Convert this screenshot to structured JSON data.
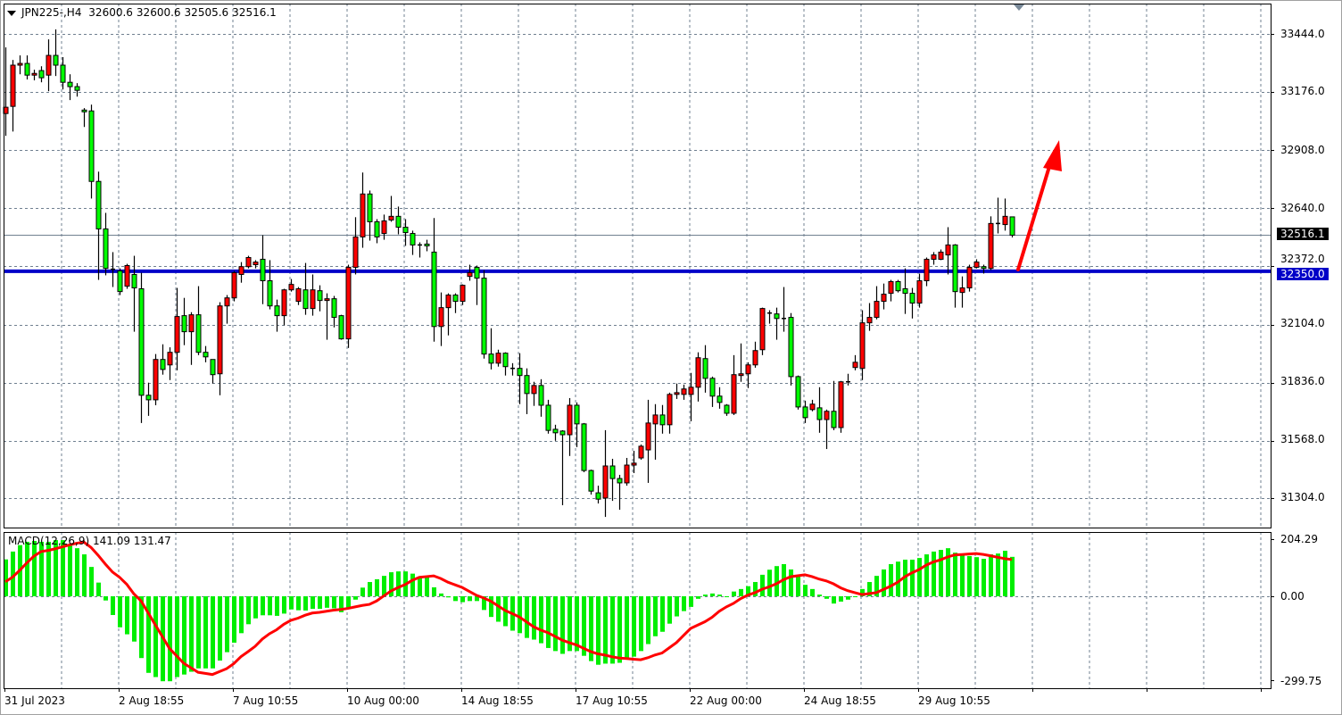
{
  "header": {
    "symbol": "JPN225-,H4",
    "open": "32600.6",
    "high": "32600.6",
    "low": "32505.6",
    "close": "32516.1"
  },
  "price_axis": {
    "ticks": [
      "33444.0",
      "33176.0",
      "32908.0",
      "32640.0",
      "32372.0",
      "32104.0",
      "31836.0",
      "31568.0",
      "31304.0"
    ],
    "current_price_label": "32516.1",
    "level_label": "32350.0"
  },
  "macd": {
    "label": "MACD(12,26,9)",
    "main_value": "141.09",
    "signal_value": "131.47",
    "ticks": [
      "204.29",
      "0.00",
      "-299.75"
    ]
  },
  "time_axis": {
    "ticks": [
      "31 Jul 2023",
      "2 Aug 18:55",
      "7 Aug 10:55",
      "10 Aug 00:00",
      "14 Aug 18:55",
      "17 Aug 10:55",
      "22 Aug 00:00",
      "24 Aug 18:55",
      "29 Aug 10:55"
    ]
  },
  "colors": {
    "bull_candle": "#ff0000",
    "bear_candle": "#00ff00",
    "level_line": "#0000c8",
    "current_price_line": "#708090",
    "macd_histogram": "#00ee00",
    "macd_signal": "#ff0000",
    "annotation_arrow": "#ff0000",
    "grid": "#708090"
  },
  "chart_data": [
    {
      "type": "candlestick",
      "title": "JPN225-,H4",
      "ylim": [
        31168,
        33584
      ],
      "grid": true,
      "price_ticks": [
        33444,
        33176,
        32908,
        32640,
        32372,
        32104,
        31836,
        31568,
        31304
      ],
      "horizontal_level": 32350.0,
      "current_price": 32516.1,
      "annotation": "up-arrow",
      "ohlc": [
        [
          33077,
          33382,
          32974,
          33106
        ],
        [
          33110,
          33324,
          32994,
          33300
        ],
        [
          33300,
          33345,
          33258,
          33308
        ],
        [
          33308,
          33345,
          33234,
          33254
        ],
        [
          33254,
          33279,
          33230,
          33262
        ],
        [
          33275,
          33295,
          33221,
          33242
        ],
        [
          33254,
          33419,
          33180,
          33345
        ],
        [
          33345,
          33465,
          33250,
          33300
        ],
        [
          33300,
          33337,
          33188,
          33221
        ],
        [
          33221,
          33258,
          33139,
          33201
        ],
        [
          33201,
          33217,
          33155,
          33184
        ],
        [
          33093,
          33102,
          33015,
          33085
        ],
        [
          33089,
          33118,
          32685,
          32764
        ],
        [
          32764,
          32809,
          32310,
          32545
        ],
        [
          32545,
          32619,
          32331,
          32363
        ],
        [
          32359,
          32438,
          32277,
          32355
        ],
        [
          32351,
          32363,
          32240,
          32256
        ],
        [
          32281,
          32384,
          32269,
          32376
        ],
        [
          32335,
          32421,
          32071,
          32273
        ],
        [
          32269,
          32343,
          31650,
          31778
        ],
        [
          31778,
          31836,
          31683,
          31757
        ],
        [
          31757,
          31968,
          31732,
          31943
        ],
        [
          31943,
          32013,
          31873,
          31897
        ],
        [
          31918,
          31999,
          31848,
          31976
        ],
        [
          31976,
          32273,
          31893,
          32141
        ],
        [
          32145,
          32227,
          32009,
          32071
        ],
        [
          32071,
          32161,
          31918,
          32149
        ],
        [
          32149,
          32281,
          31963,
          31976
        ],
        [
          31976,
          32005,
          31930,
          31955
        ],
        [
          31943,
          31943,
          31832,
          31873
        ],
        [
          31877,
          32207,
          31778,
          32190
        ],
        [
          32190,
          32240,
          32108,
          32227
        ],
        [
          32227,
          32351,
          32211,
          32343
        ],
        [
          32335,
          32392,
          32297,
          32371
        ],
        [
          32371,
          32421,
          32363,
          32413
        ],
        [
          32380,
          32401,
          32363,
          32392
        ],
        [
          32405,
          32516,
          32198,
          32306
        ],
        [
          32306,
          32401,
          32174,
          32190
        ],
        [
          32190,
          32219,
          32071,
          32145
        ],
        [
          32145,
          32269,
          32100,
          32264
        ],
        [
          32264,
          32314,
          32256,
          32289
        ],
        [
          32211,
          32277,
          32194,
          32269
        ],
        [
          32264,
          32388,
          32149,
          32178
        ],
        [
          32178,
          32335,
          32145,
          32264
        ],
        [
          32260,
          32285,
          32165,
          32215
        ],
        [
          32215,
          32248,
          32034,
          32223
        ],
        [
          32223,
          32236,
          32091,
          32137
        ],
        [
          32145,
          32149,
          32034,
          32038
        ],
        [
          32038,
          32380,
          31996,
          32368
        ],
        [
          32368,
          32599,
          32335,
          32508
        ],
        [
          32508,
          32805,
          32458,
          32706
        ],
        [
          32706,
          32722,
          32491,
          32578
        ],
        [
          32578,
          32590,
          32479,
          32508
        ],
        [
          32524,
          32611,
          32495,
          32582
        ],
        [
          32586,
          32697,
          32578,
          32603
        ],
        [
          32603,
          32648,
          32520,
          32553
        ],
        [
          32553,
          32590,
          32467,
          32528
        ],
        [
          32524,
          32537,
          32425,
          32471
        ],
        [
          32471,
          32483,
          32413,
          32471
        ],
        [
          32475,
          32495,
          32442,
          32467
        ],
        [
          32438,
          32595,
          32025,
          32095
        ],
        [
          32095,
          32252,
          32005,
          32182
        ],
        [
          32182,
          32248,
          32054,
          32240
        ],
        [
          32240,
          32248,
          32157,
          32211
        ],
        [
          32211,
          32289,
          32194,
          32285
        ],
        [
          32326,
          32380,
          32306,
          32343
        ],
        [
          32368,
          32376,
          32194,
          32318
        ],
        [
          32318,
          32355,
          31947,
          31968
        ],
        [
          31968,
          32087,
          31897,
          31926
        ],
        [
          31926,
          31988,
          31910,
          31972
        ],
        [
          31972,
          31976,
          31869,
          31910
        ],
        [
          31902,
          31926,
          31869,
          31902
        ],
        [
          31902,
          31972,
          31737,
          31869
        ],
        [
          31869,
          31902,
          31691,
          31786
        ],
        [
          31786,
          31840,
          31729,
          31823
        ],
        [
          31823,
          31852,
          31679,
          31732
        ],
        [
          31732,
          31757,
          31601,
          31616
        ],
        [
          31621,
          31642,
          31568,
          31605
        ],
        [
          31613,
          31617,
          31271,
          31596
        ],
        [
          31596,
          31765,
          31498,
          31732
        ],
        [
          31732,
          31745,
          31539,
          31646
        ],
        [
          31646,
          31650,
          31423,
          31431
        ],
        [
          31431,
          31435,
          31320,
          31336
        ],
        [
          31328,
          31361,
          31279,
          31299
        ],
        [
          31304,
          31617,
          31217,
          31452
        ],
        [
          31452,
          31485,
          31291,
          31394
        ],
        [
          31394,
          31411,
          31250,
          31374
        ],
        [
          31374,
          31489,
          31361,
          31456
        ],
        [
          31456,
          31522,
          31419,
          31465
        ],
        [
          31489,
          31551,
          31481,
          31543
        ],
        [
          31526,
          31757,
          31374,
          31650
        ],
        [
          31646,
          31737,
          31481,
          31687
        ],
        [
          31687,
          31733,
          31601,
          31642
        ],
        [
          31642,
          31790,
          31601,
          31782
        ],
        [
          31782,
          31832,
          31761,
          31790
        ],
        [
          31782,
          31827,
          31757,
          31807
        ],
        [
          31782,
          31881,
          31658,
          31815
        ],
        [
          31815,
          31976,
          31749,
          31951
        ],
        [
          31947,
          32009,
          31790,
          31856
        ],
        [
          31856,
          31864,
          31724,
          31774
        ],
        [
          31774,
          31815,
          31716,
          31745
        ],
        [
          31732,
          31737,
          31683,
          31695
        ],
        [
          31695,
          31963,
          31687,
          31873
        ],
        [
          31869,
          32017,
          31840,
          31877
        ],
        [
          31877,
          31930,
          31811,
          31918
        ],
        [
          31918,
          32025,
          31905,
          31984
        ],
        [
          31988,
          32182,
          31963,
          32178
        ],
        [
          32157,
          32170,
          32108,
          32157
        ],
        [
          32153,
          32182,
          32034,
          32132
        ],
        [
          32132,
          32277,
          32071,
          32128
        ],
        [
          32137,
          32157,
          31823,
          31864
        ],
        [
          31864,
          31869,
          31712,
          31724
        ],
        [
          31724,
          31753,
          31650,
          31675
        ],
        [
          31712,
          31757,
          31704,
          31737
        ],
        [
          31720,
          31815,
          31605,
          31666
        ],
        [
          31666,
          31712,
          31530,
          31704
        ],
        [
          31704,
          31844,
          31617,
          31629
        ],
        [
          31629,
          31844,
          31605,
          31840
        ],
        [
          31840,
          31877,
          31823,
          31840
        ],
        [
          31906,
          31963,
          31893,
          31930
        ],
        [
          31902,
          32170,
          31848,
          32112
        ],
        [
          32112,
          32203,
          32075,
          32137
        ],
        [
          32137,
          32281,
          32128,
          32211
        ],
        [
          32211,
          32293,
          32174,
          32244
        ],
        [
          32248,
          32310,
          32211,
          32302
        ],
        [
          32302,
          32310,
          32252,
          32260
        ],
        [
          32269,
          32363,
          32153,
          32248
        ],
        [
          32248,
          32273,
          32132,
          32203
        ],
        [
          32203,
          32339,
          32182,
          32306
        ],
        [
          32306,
          32413,
          32281,
          32405
        ],
        [
          32405,
          32438,
          32380,
          32425
        ],
        [
          32405,
          32450,
          32401,
          32438
        ],
        [
          32425,
          32553,
          32335,
          32471
        ],
        [
          32471,
          32475,
          32182,
          32256
        ],
        [
          32252,
          32326,
          32182,
          32273
        ],
        [
          32273,
          32380,
          32256,
          32368
        ],
        [
          32368,
          32405,
          32363,
          32392
        ],
        [
          32371,
          32380,
          32339,
          32363
        ],
        [
          32363,
          32603,
          32355,
          32570
        ],
        [
          32570,
          32689,
          32524,
          32570
        ],
        [
          32565,
          32685,
          32537,
          32603
        ],
        [
          32600.6,
          32600.6,
          32505.6,
          32516.1
        ]
      ]
    },
    {
      "type": "bar",
      "title": "MACD(12,26,9)",
      "ylim": [
        -329,
        230
      ],
      "ticks": [
        204.29,
        0.0,
        -299.75
      ],
      "histogram": [
        132,
        160,
        183,
        195,
        198,
        195,
        195,
        201,
        201,
        185,
        172,
        150,
        105,
        49,
        -15,
        -67,
        -111,
        -136,
        -162,
        -221,
        -274,
        -289,
        -304,
        -304,
        -289,
        -280,
        -270,
        -258,
        -258,
        -258,
        -230,
        -200,
        -166,
        -132,
        -100,
        -79,
        -68,
        -68,
        -70,
        -62,
        -47,
        -50,
        -51,
        -45,
        -45,
        -41,
        -43,
        -57,
        -43,
        -12,
        31,
        51,
        61,
        73,
        86,
        89,
        89,
        81,
        70,
        68,
        32,
        10,
        -4,
        -17,
        -21,
        -17,
        -17,
        -49,
        -74,
        -91,
        -107,
        -123,
        -132,
        -149,
        -155,
        -168,
        -185,
        -196,
        -206,
        -196,
        -196,
        -213,
        -232,
        -245,
        -241,
        -241,
        -238,
        -221,
        -216,
        -196,
        -171,
        -143,
        -127,
        -98,
        -72,
        -53,
        -38,
        -9,
        6,
        10,
        6,
        -1,
        17,
        26,
        36,
        51,
        77,
        95,
        108,
        115,
        96,
        70,
        41,
        26,
        6,
        -9,
        -26,
        -19,
        -12,
        -3,
        26,
        51,
        73,
        96,
        115,
        124,
        131,
        131,
        137,
        150,
        160,
        166,
        172,
        156,
        150,
        144,
        140,
        134,
        150,
        153,
        163,
        141.09
      ],
      "signal_points": [
        [
          0,
          52
        ],
        [
          5,
          160
        ],
        [
          11,
          194
        ],
        [
          16,
          68
        ],
        [
          19,
          -16
        ],
        [
          21,
          -102
        ],
        [
          23,
          -187
        ],
        [
          25,
          -240
        ],
        [
          27,
          -272
        ],
        [
          29,
          -280
        ],
        [
          31,
          -259
        ],
        [
          34,
          -198
        ],
        [
          37,
          -134
        ],
        [
          40,
          -86
        ],
        [
          43,
          -60
        ],
        [
          47,
          -47
        ],
        [
          51,
          -29
        ],
        [
          55,
          31
        ],
        [
          58,
          68
        ],
        [
          60,
          73
        ],
        [
          63,
          41
        ],
        [
          67,
          -6
        ],
        [
          71,
          -62
        ],
        [
          75,
          -121
        ],
        [
          79,
          -166
        ],
        [
          83,
          -206
        ],
        [
          86,
          -221
        ],
        [
          89,
          -227
        ],
        [
          92,
          -203
        ],
        [
          94,
          -166
        ],
        [
          96,
          -115
        ],
        [
          98,
          -91
        ],
        [
          101,
          -38
        ],
        [
          104,
          4
        ],
        [
          107,
          34
        ],
        [
          110,
          70
        ],
        [
          112,
          77
        ],
        [
          115,
          55
        ],
        [
          118,
          20
        ],
        [
          120,
          6
        ],
        [
          122,
          13
        ],
        [
          124,
          36
        ],
        [
          127,
          84
        ],
        [
          130,
          123
        ],
        [
          133,
          148
        ],
        [
          136,
          153
        ],
        [
          141,
          131.47
        ]
      ]
    }
  ]
}
